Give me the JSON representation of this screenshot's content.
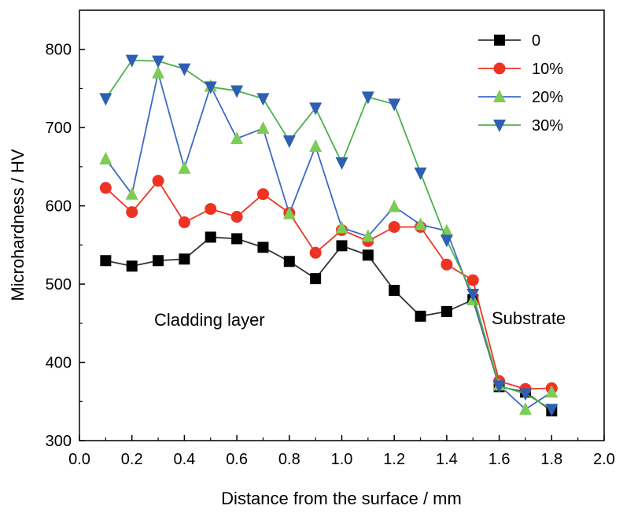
{
  "chart_data": {
    "type": "line",
    "title": "",
    "xlabel": "Distance from the surface / mm",
    "ylabel": "Microhardness / HV",
    "xlim": [
      0.0,
      2.0
    ],
    "ylim": [
      300,
      850
    ],
    "xticks": [
      0.0,
      0.2,
      0.4,
      0.6,
      0.8,
      1.0,
      1.2,
      1.4,
      1.6,
      1.8,
      2.0
    ],
    "xtick_labels": [
      "0.0",
      "0.2",
      "0.4",
      "0.6",
      "0.8",
      "1.0",
      "1.2",
      "1.4",
      "1.6",
      "1.8",
      "2.0"
    ],
    "yticks": [
      300,
      400,
      500,
      600,
      700,
      800
    ],
    "ytick_labels": [
      "300",
      "400",
      "500",
      "600",
      "700",
      "800"
    ],
    "grid": false,
    "legend_position": "top-right",
    "x": [
      0.1,
      0.2,
      0.3,
      0.4,
      0.5,
      0.6,
      0.7,
      0.8,
      0.9,
      1.0,
      1.1,
      1.2,
      1.3,
      1.4,
      1.5,
      1.6,
      1.7,
      1.8
    ],
    "series": [
      {
        "name": "0",
        "color": "#000000",
        "line_color": "#333333",
        "marker": "square",
        "values": [
          530,
          523,
          530,
          532,
          560,
          558,
          547,
          529,
          507,
          549,
          537,
          492,
          459,
          465,
          480,
          369,
          362,
          338
        ]
      },
      {
        "name": "10%",
        "color": "#ee3322",
        "line_color": "#ee3322",
        "marker": "circle",
        "values": [
          623,
          592,
          632,
          579,
          596,
          586,
          615,
          591,
          540,
          569,
          555,
          573,
          573,
          525,
          505,
          376,
          366,
          367
        ]
      },
      {
        "name": "20%",
        "color": "#7dcc55",
        "line_color": "#3f68c2",
        "marker": "triangle-up",
        "values": [
          660,
          615,
          770,
          648,
          753,
          686,
          699,
          590,
          676,
          572,
          561,
          599,
          576,
          568,
          480,
          371,
          340,
          362
        ]
      },
      {
        "name": "30%",
        "color": "#2f5fb3",
        "line_color": "#4cb04c",
        "marker": "triangle-down",
        "values": [
          737,
          786,
          785,
          775,
          752,
          747,
          737,
          683,
          725,
          655,
          739,
          730,
          642,
          556,
          487,
          370,
          360,
          340
        ]
      }
    ],
    "annotations": [
      {
        "text": "Cladding layer"
      },
      {
        "text": "Substrate"
      }
    ]
  }
}
